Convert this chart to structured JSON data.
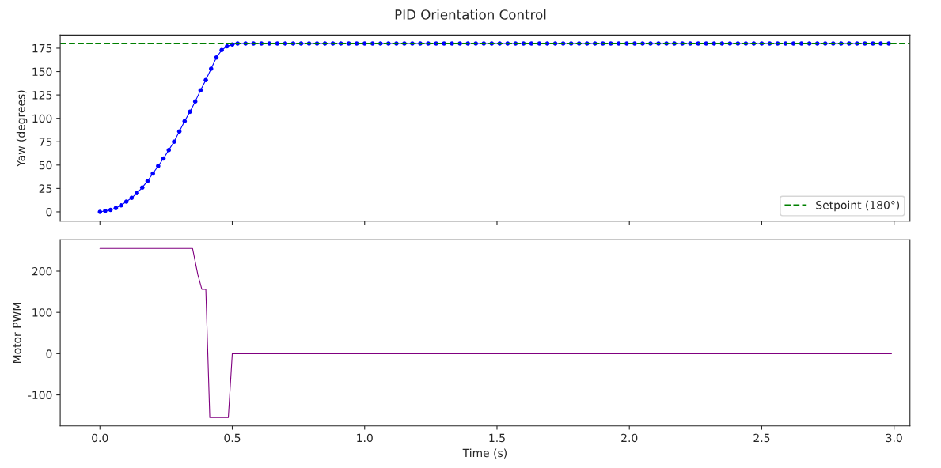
{
  "chart_data": [
    {
      "type": "line",
      "title": "PID Orientation Control",
      "ylabel": "Yaw (degrees)",
      "xlim": [
        -0.15,
        3.06
      ],
      "ylim": [
        -10,
        189
      ],
      "yticks": [
        0,
        25,
        50,
        75,
        100,
        125,
        150,
        175
      ],
      "xticks": [
        {
          "value": 0,
          "label": null
        },
        {
          "value": 0.5,
          "label": null
        },
        {
          "value": 1,
          "label": null
        },
        {
          "value": 1.5,
          "label": null
        },
        {
          "value": 2,
          "label": null
        },
        {
          "value": 2.5,
          "label": null
        },
        {
          "value": 3,
          "label": null
        }
      ],
      "tick_labels": "y",
      "marker": "circle",
      "legend": "bottom right",
      "grid": false,
      "series": [
        {
          "color": "#0000ff",
          "x": [
            0,
            0.02,
            0.04,
            0.06,
            0.08,
            0.1,
            0.12,
            0.14,
            0.16,
            0.18,
            0.2,
            0.22,
            0.24,
            0.26,
            0.28,
            0.3,
            0.32,
            0.34,
            0.36,
            0.38,
            0.4,
            0.42,
            0.44,
            0.46,
            0.48,
            0.5,
            0.52,
            0.55,
            0.58,
            0.61,
            0.64,
            0.67,
            0.7,
            0.73,
            0.76,
            0.79,
            0.82,
            0.85,
            0.88,
            0.91,
            0.94,
            0.97,
            1.0,
            1.03,
            1.06,
            1.09,
            1.12,
            1.15,
            1.18,
            1.21,
            1.24,
            1.27,
            1.3,
            1.33,
            1.36,
            1.39,
            1.42,
            1.45,
            1.48,
            1.51,
            1.54,
            1.57,
            1.6,
            1.63,
            1.66,
            1.69,
            1.72,
            1.75,
            1.78,
            1.81,
            1.84,
            1.87,
            1.9,
            1.93,
            1.96,
            1.99,
            2.02,
            2.05,
            2.08,
            2.11,
            2.14,
            2.17,
            2.2,
            2.23,
            2.26,
            2.29,
            2.32,
            2.35,
            2.38,
            2.41,
            2.44,
            2.47,
            2.5,
            2.53,
            2.56,
            2.59,
            2.62,
            2.65,
            2.68,
            2.71,
            2.74,
            2.77,
            2.8,
            2.83,
            2.86,
            2.89,
            2.92,
            2.95,
            2.98
          ],
          "values": [
            0,
            1,
            2,
            4,
            7,
            11,
            15,
            20,
            26,
            33,
            41,
            49,
            57,
            66,
            75,
            86,
            97,
            107,
            118,
            130,
            141,
            153,
            165,
            173,
            177,
            179,
            180,
            180,
            180,
            180,
            180,
            180,
            180,
            180,
            180,
            180,
            180,
            180,
            180,
            180,
            180,
            180,
            180,
            180,
            180,
            180,
            180,
            180,
            180,
            180,
            180,
            180,
            180,
            180,
            180,
            180,
            180,
            180,
            180,
            180,
            180,
            180,
            180,
            180,
            180,
            180,
            180,
            180,
            180,
            180,
            180,
            180,
            180,
            180,
            180,
            180,
            180,
            180,
            180,
            180,
            180,
            180,
            180,
            180,
            180,
            180,
            180,
            180,
            180,
            180,
            180,
            180,
            180,
            180,
            180,
            180,
            180,
            180,
            180,
            180,
            180,
            180,
            180,
            180,
            180,
            180,
            180,
            180,
            180
          ]
        }
      ],
      "ref_lines": [
        {
          "axis": "y",
          "value": 180,
          "label": "Setpoint (180°)",
          "color": "#008000",
          "line_style": "dashed"
        }
      ]
    },
    {
      "type": "line",
      "xlabel": "Time (s)",
      "ylabel": "Motor PWM",
      "xlim": [
        -0.15,
        3.06
      ],
      "ylim": [
        -175,
        276
      ],
      "yticks": [
        -100,
        0,
        100,
        200
      ],
      "xticks": [
        {
          "value": 0,
          "label": "0.0"
        },
        {
          "value": 0.5,
          "label": "0.5"
        },
        {
          "value": 1,
          "label": "1.0"
        },
        {
          "value": 1.5,
          "label": "1.5"
        },
        {
          "value": 2,
          "label": "2.0"
        },
        {
          "value": 2.5,
          "label": "2.5"
        },
        {
          "value": 3,
          "label": "3.0"
        }
      ],
      "grid": false,
      "series": [
        {
          "color": "#800080",
          "x": [
            0,
            0.35,
            0.37,
            0.385,
            0.4,
            0.415,
            0.485,
            0.5,
            2.99
          ],
          "values": [
            255,
            255,
            191,
            156,
            156,
            -155,
            -155,
            0,
            0
          ]
        }
      ]
    }
  ]
}
